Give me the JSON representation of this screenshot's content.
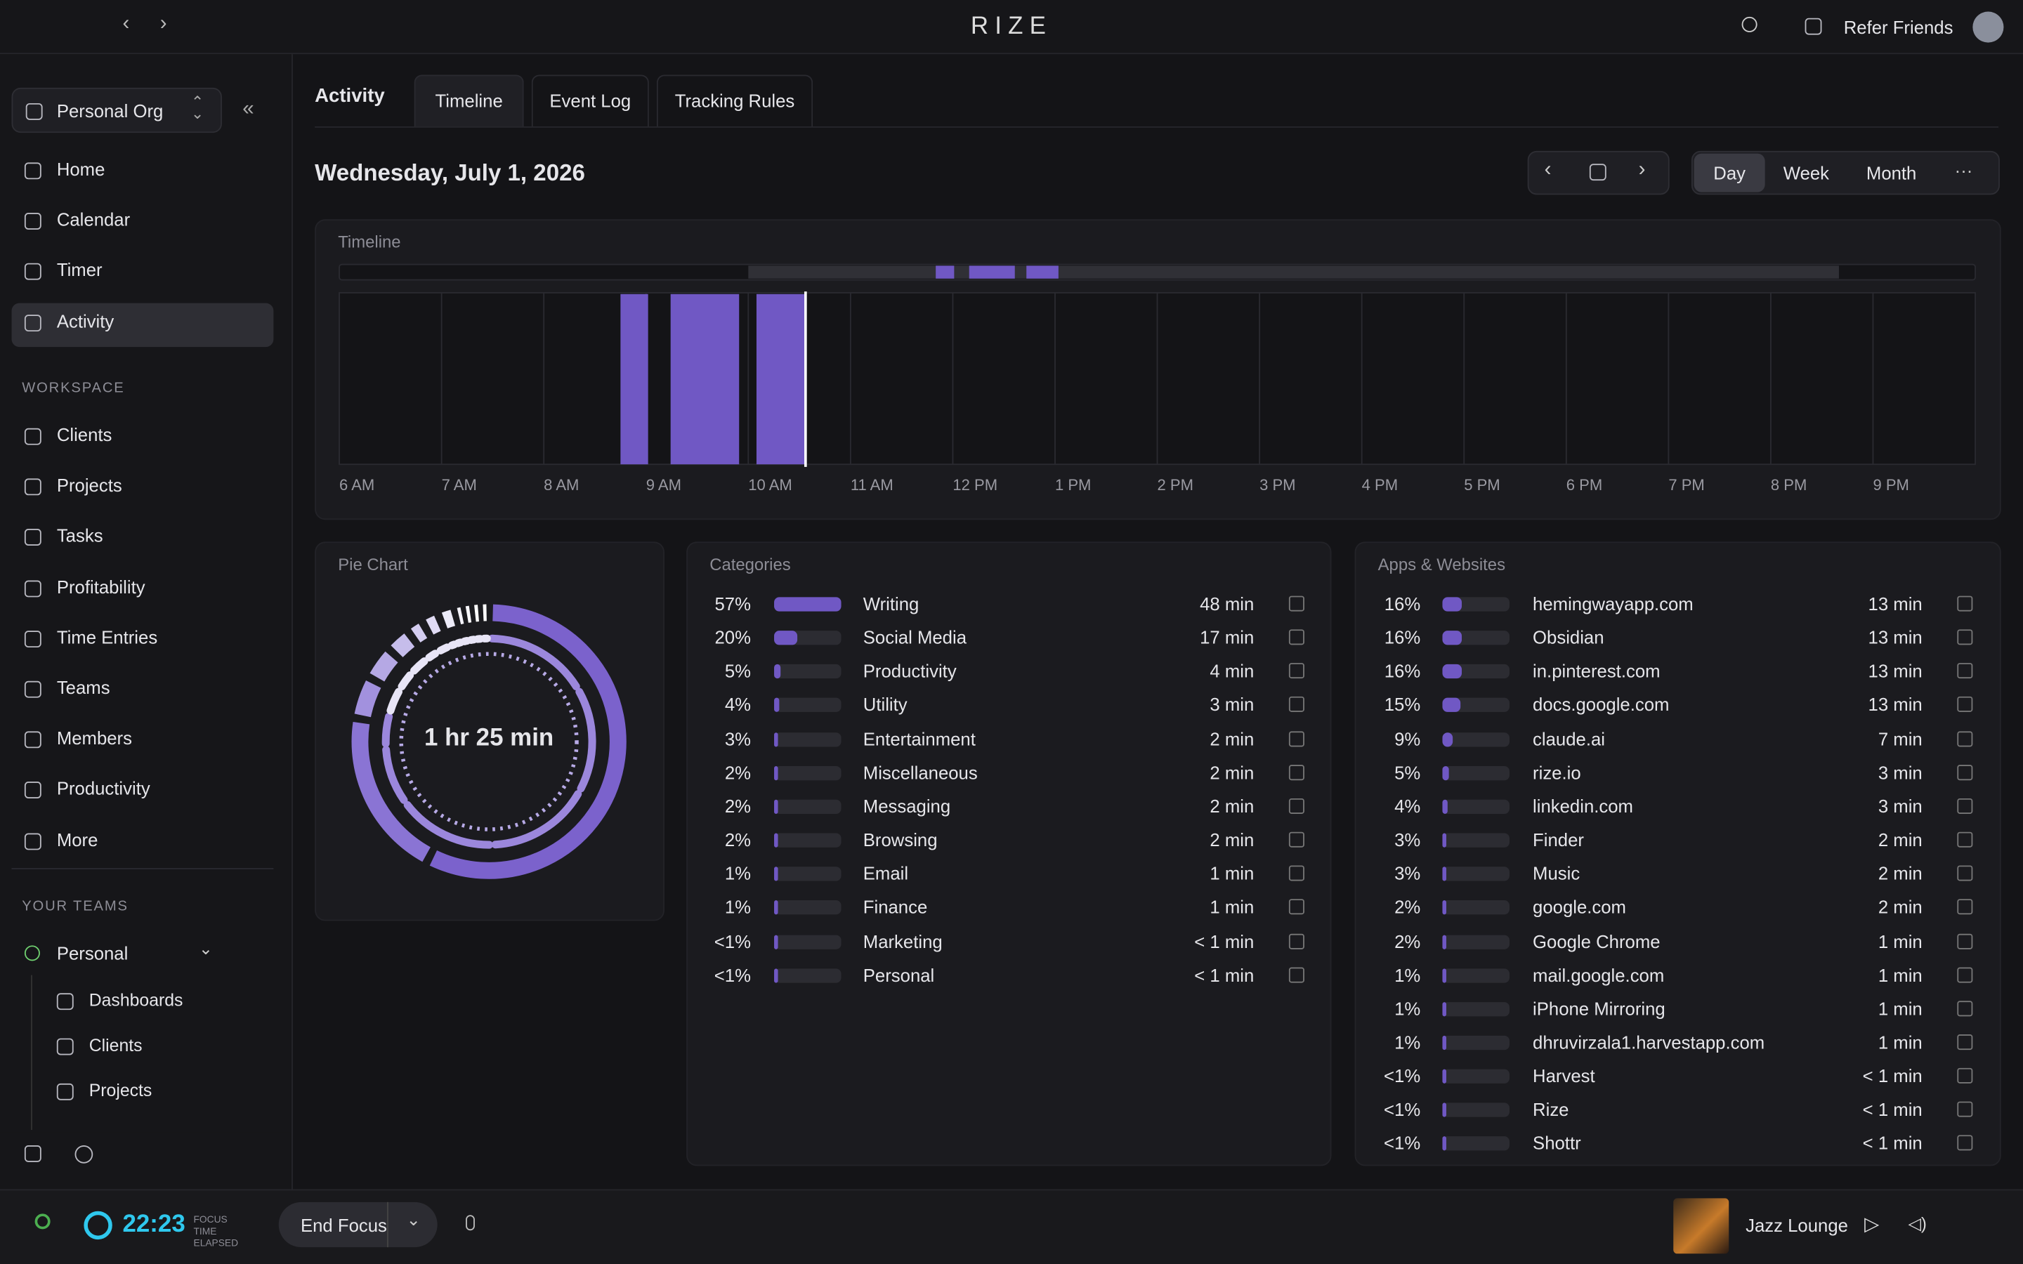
{
  "header": {
    "brand": "RIZE",
    "refer": "Refer Friends"
  },
  "sidebar": {
    "org": "Personal Org",
    "nav": [
      "Home",
      "Calendar",
      "Timer",
      "Activity"
    ],
    "workspace_heading": "WORKSPACE",
    "workspace": [
      "Clients",
      "Projects",
      "Tasks",
      "Profitability",
      "Time Entries",
      "Teams",
      "Members",
      "Productivity",
      "More"
    ],
    "teams_heading": "YOUR TEAMS",
    "team": "Personal",
    "team_items": [
      "Dashboards",
      "Clients",
      "Projects"
    ]
  },
  "tabs": {
    "section": "Activity",
    "items": [
      "Timeline",
      "Event Log",
      "Tracking Rules"
    ]
  },
  "date": "Wednesday, July 1, 2026",
  "views": [
    "Day",
    "Week",
    "Month"
  ],
  "timeline": {
    "title": "Timeline",
    "xlim": [
      6,
      22
    ],
    "ticks": [
      {
        "value": 6,
        "label": "6 AM"
      },
      {
        "value": 7,
        "label": "7 AM"
      },
      {
        "value": 8,
        "label": "8 AM"
      },
      {
        "value": 9,
        "label": "9 AM"
      },
      {
        "value": 10,
        "label": "10 AM"
      },
      {
        "value": 11,
        "label": "11 AM"
      },
      {
        "value": 12,
        "label": "12 PM"
      },
      {
        "value": 13,
        "label": "1 PM"
      },
      {
        "value": 14,
        "label": "2 PM"
      },
      {
        "value": 15,
        "label": "3 PM"
      },
      {
        "value": 16,
        "label": "4 PM"
      },
      {
        "value": 17,
        "label": "5 PM"
      },
      {
        "value": 18,
        "label": "6 PM"
      },
      {
        "value": 19,
        "label": "7 PM"
      },
      {
        "value": 20,
        "label": "8 PM"
      },
      {
        "value": 21,
        "label": "9 PM"
      }
    ],
    "overview_xlim": [
      0,
      24
    ],
    "blocks": [
      [
        8.75,
        9.02
      ],
      [
        9.24,
        9.91
      ],
      [
        10.08,
        10.55
      ]
    ],
    "now": 10.56,
    "color": "#7058c4"
  },
  "pie": {
    "title": "Pie Chart",
    "total": "1 hr 25 min"
  },
  "categories": {
    "title": "Categories",
    "rows": [
      {
        "percent": "57%",
        "name": "Writing",
        "time": "48 min"
      },
      {
        "percent": "20%",
        "name": "Social Media",
        "time": "17 min"
      },
      {
        "percent": "5%",
        "name": "Productivity",
        "time": "4 min"
      },
      {
        "percent": "4%",
        "name": "Utility",
        "time": "3 min"
      },
      {
        "percent": "3%",
        "name": "Entertainment",
        "time": "2 min"
      },
      {
        "percent": "2%",
        "name": "Miscellaneous",
        "time": "2 min"
      },
      {
        "percent": "2%",
        "name": "Messaging",
        "time": "2 min"
      },
      {
        "percent": "2%",
        "name": "Browsing",
        "time": "2 min"
      },
      {
        "percent": "1%",
        "name": "Email",
        "time": "1 min"
      },
      {
        "percent": "1%",
        "name": "Finance",
        "time": "1 min"
      },
      {
        "percent": "<1%",
        "name": "Marketing",
        "time": "< 1 min"
      },
      {
        "percent": "<1%",
        "name": "Personal",
        "time": "< 1 min"
      }
    ]
  },
  "apps": {
    "title": "Apps & Websites",
    "rows": [
      {
        "percent": "16%",
        "name": "hemingwayapp.com",
        "time": "13 min"
      },
      {
        "percent": "16%",
        "name": "Obsidian",
        "time": "13 min"
      },
      {
        "percent": "16%",
        "name": "in.pinterest.com",
        "time": "13 min"
      },
      {
        "percent": "15%",
        "name": "docs.google.com",
        "time": "13 min"
      },
      {
        "percent": "9%",
        "name": "claude.ai",
        "time": "7 min"
      },
      {
        "percent": "5%",
        "name": "rize.io",
        "time": "3 min"
      },
      {
        "percent": "4%",
        "name": "linkedin.com",
        "time": "3 min"
      },
      {
        "percent": "3%",
        "name": "Finder",
        "time": "2 min"
      },
      {
        "percent": "3%",
        "name": "Music",
        "time": "2 min"
      },
      {
        "percent": "2%",
        "name": "google.com",
        "time": "2 min"
      },
      {
        "percent": "2%",
        "name": "Google Chrome",
        "time": "1 min"
      },
      {
        "percent": "1%",
        "name": "mail.google.com",
        "time": "1 min"
      },
      {
        "percent": "1%",
        "name": "iPhone Mirroring",
        "time": "1 min"
      },
      {
        "percent": "1%",
        "name": "dhruvirzala1.harvestapp.com",
        "time": "1 min"
      },
      {
        "percent": "<1%",
        "name": "Harvest",
        "time": "< 1 min"
      },
      {
        "percent": "<1%",
        "name": "Rize",
        "time": "< 1 min"
      },
      {
        "percent": "<1%",
        "name": "Shottr",
        "time": "< 1 min"
      }
    ]
  },
  "footer": {
    "timer": "22:23",
    "caption": "FOCUS TIME ELAPSED",
    "end": "End Focus",
    "track": "Jazz Lounge"
  }
}
